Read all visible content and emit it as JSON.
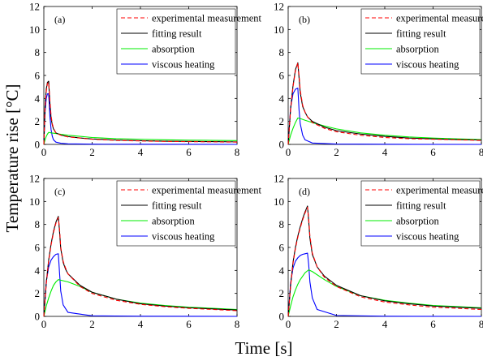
{
  "figure": {
    "xlabel": "Time [s]",
    "ylabel": "Temperature rise [°C]"
  },
  "colors": {
    "experimental": "#ff0000",
    "fitting": "#000000",
    "absorption": "#00ee00",
    "viscous": "#0000ff"
  },
  "chart_data": [
    {
      "type": "line",
      "panel": "(a)",
      "xlim": [
        0,
        8
      ],
      "ylim": [
        0,
        12
      ],
      "xticks": [
        0,
        2,
        4,
        6,
        8
      ],
      "yticks": [
        0,
        2,
        4,
        6,
        8,
        10,
        12
      ],
      "legend_position": "top-right",
      "series": [
        {
          "name": "experimental measurement",
          "style": "dashed",
          "x": [
            0,
            0.05,
            0.1,
            0.15,
            0.2,
            0.25,
            0.3,
            0.35,
            0.4,
            0.5,
            0.7,
            1,
            1.5,
            2,
            3,
            4,
            5,
            6,
            7,
            8
          ],
          "values": [
            0,
            3.2,
            4.6,
            5.3,
            5.4,
            3.8,
            2.5,
            1.8,
            1.4,
            1.0,
            0.8,
            0.65,
            0.55,
            0.45,
            0.35,
            0.3,
            0.26,
            0.24,
            0.22,
            0.2
          ]
        },
        {
          "name": "fitting result",
          "style": "solid",
          "x": [
            0,
            0.05,
            0.1,
            0.15,
            0.2,
            0.25,
            0.3,
            0.35,
            0.4,
            0.5,
            0.7,
            1,
            1.5,
            2,
            3,
            4,
            5,
            6,
            7,
            8
          ],
          "values": [
            0,
            3.3,
            4.8,
            5.4,
            5.5,
            3.6,
            2.3,
            1.7,
            1.35,
            1.0,
            0.82,
            0.68,
            0.56,
            0.47,
            0.38,
            0.32,
            0.28,
            0.26,
            0.24,
            0.22
          ]
        },
        {
          "name": "absorption",
          "style": "solid",
          "x": [
            0,
            0.05,
            0.1,
            0.15,
            0.2,
            0.3,
            0.5,
            0.7,
            1,
            1.5,
            2,
            3,
            4,
            5,
            6,
            7,
            8
          ],
          "values": [
            0,
            0.4,
            0.7,
            0.9,
            1.05,
            1.0,
            0.95,
            0.88,
            0.8,
            0.7,
            0.6,
            0.5,
            0.45,
            0.4,
            0.37,
            0.35,
            0.33
          ]
        },
        {
          "name": "viscous heating",
          "style": "solid",
          "x": [
            0,
            0.05,
            0.1,
            0.15,
            0.2,
            0.25,
            0.3,
            0.35,
            0.4,
            0.5,
            0.7,
            1,
            2,
            4,
            8
          ],
          "values": [
            0,
            2.8,
            4.0,
            4.4,
            4.4,
            2.5,
            1.3,
            0.7,
            0.4,
            0.2,
            0.1,
            0.05,
            0.02,
            0.01,
            0
          ]
        }
      ]
    },
    {
      "type": "line",
      "panel": "(b)",
      "xlim": [
        0,
        8
      ],
      "ylim": [
        0,
        12
      ],
      "xticks": [
        0,
        2,
        4,
        6,
        8
      ],
      "yticks": [
        0,
        2,
        4,
        6,
        8,
        10,
        12
      ],
      "legend_position": "top-right",
      "series": [
        {
          "name": "experimental measurement",
          "style": "dashed",
          "x": [
            0,
            0.1,
            0.2,
            0.3,
            0.4,
            0.45,
            0.5,
            0.6,
            0.7,
            0.8,
            1,
            1.5,
            2,
            3,
            4,
            5,
            6,
            7,
            8
          ],
          "values": [
            0,
            3.0,
            5.0,
            6.4,
            7.1,
            6.0,
            4.7,
            3.4,
            2.8,
            2.4,
            1.9,
            1.4,
            1.1,
            0.8,
            0.6,
            0.5,
            0.45,
            0.4,
            0.35
          ]
        },
        {
          "name": "fitting result",
          "style": "solid",
          "x": [
            0,
            0.1,
            0.2,
            0.3,
            0.4,
            0.45,
            0.5,
            0.6,
            0.7,
            0.8,
            1,
            1.5,
            2,
            3,
            4,
            5,
            6,
            7,
            8
          ],
          "values": [
            0,
            3.1,
            5.1,
            6.5,
            7.1,
            5.8,
            4.5,
            3.3,
            2.8,
            2.4,
            2.0,
            1.5,
            1.2,
            0.9,
            0.7,
            0.55,
            0.48,
            0.42,
            0.38
          ]
        },
        {
          "name": "absorption",
          "style": "solid",
          "x": [
            0,
            0.1,
            0.2,
            0.3,
            0.4,
            0.5,
            0.7,
            1,
            1.5,
            2,
            3,
            4,
            5,
            6,
            7,
            8
          ],
          "values": [
            0,
            0.8,
            1.4,
            1.9,
            2.3,
            2.25,
            2.1,
            1.9,
            1.6,
            1.35,
            1.0,
            0.8,
            0.65,
            0.55,
            0.48,
            0.42
          ]
        },
        {
          "name": "viscous heating",
          "style": "solid",
          "x": [
            0,
            0.1,
            0.2,
            0.3,
            0.4,
            0.45,
            0.5,
            0.6,
            0.7,
            1,
            2,
            4,
            8
          ],
          "values": [
            0,
            3.2,
            4.4,
            4.8,
            4.9,
            3.0,
            1.8,
            0.8,
            0.4,
            0.12,
            0.03,
            0.01,
            0
          ]
        }
      ]
    },
    {
      "type": "line",
      "panel": "(c)",
      "xlim": [
        0,
        8
      ],
      "ylim": [
        0,
        12
      ],
      "xticks": [
        0,
        2,
        4,
        6,
        8
      ],
      "yticks": [
        0,
        2,
        4,
        6,
        8,
        10,
        12
      ],
      "legend_position": "top-right",
      "series": [
        {
          "name": "experimental measurement",
          "style": "dashed",
          "x": [
            0,
            0.1,
            0.2,
            0.3,
            0.4,
            0.5,
            0.6,
            0.65,
            0.7,
            0.8,
            0.9,
            1,
            1.5,
            2,
            3,
            4,
            5,
            6,
            7,
            8
          ],
          "values": [
            0,
            2.8,
            4.8,
            6.2,
            7.3,
            8.1,
            8.6,
            7.6,
            6.0,
            4.8,
            4.2,
            3.7,
            2.6,
            2.0,
            1.4,
            1.05,
            0.85,
            0.7,
            0.6,
            0.5
          ]
        },
        {
          "name": "fitting result",
          "style": "solid",
          "x": [
            0,
            0.1,
            0.2,
            0.3,
            0.4,
            0.5,
            0.6,
            0.65,
            0.7,
            0.8,
            0.9,
            1,
            1.5,
            2,
            3,
            4,
            5,
            6,
            7,
            8
          ],
          "values": [
            0,
            2.9,
            4.9,
            6.3,
            7.4,
            8.2,
            8.7,
            7.4,
            5.9,
            4.7,
            4.1,
            3.7,
            2.7,
            2.1,
            1.5,
            1.1,
            0.9,
            0.75,
            0.65,
            0.55
          ]
        },
        {
          "name": "absorption",
          "style": "solid",
          "x": [
            0,
            0.1,
            0.2,
            0.3,
            0.4,
            0.5,
            0.6,
            0.7,
            1,
            1.5,
            2,
            3,
            4,
            5,
            6,
            7,
            8
          ],
          "values": [
            0,
            0.9,
            1.6,
            2.2,
            2.7,
            3.0,
            3.2,
            3.15,
            3.0,
            2.6,
            2.1,
            1.5,
            1.15,
            0.95,
            0.8,
            0.7,
            0.6
          ]
        },
        {
          "name": "viscous heating",
          "style": "solid",
          "x": [
            0,
            0.1,
            0.2,
            0.3,
            0.4,
            0.5,
            0.6,
            0.65,
            0.7,
            0.8,
            1,
            2,
            4,
            8
          ],
          "values": [
            0,
            3.0,
            4.3,
            4.9,
            5.2,
            5.4,
            5.45,
            3.8,
            2.2,
            1.0,
            0.35,
            0.05,
            0.01,
            0
          ]
        }
      ]
    },
    {
      "type": "line",
      "panel": "(d)",
      "xlim": [
        0,
        8
      ],
      "ylim": [
        0,
        12
      ],
      "xticks": [
        0,
        2,
        4,
        6,
        8
      ],
      "yticks": [
        0,
        2,
        4,
        6,
        8,
        10,
        12
      ],
      "legend_position": "top-right",
      "series": [
        {
          "name": "experimental measurement",
          "style": "dashed",
          "x": [
            0,
            0.1,
            0.2,
            0.3,
            0.4,
            0.5,
            0.6,
            0.7,
            0.8,
            0.85,
            0.9,
            1,
            1.2,
            1.5,
            2,
            3,
            4,
            5,
            6,
            7,
            8
          ],
          "values": [
            0,
            2.6,
            4.6,
            5.9,
            6.9,
            7.7,
            8.4,
            9.0,
            9.5,
            8.5,
            7.0,
            5.5,
            4.3,
            3.4,
            2.6,
            1.7,
            1.25,
            1.0,
            0.8,
            0.7,
            0.6
          ]
        },
        {
          "name": "fitting result",
          "style": "solid",
          "x": [
            0,
            0.1,
            0.2,
            0.3,
            0.4,
            0.5,
            0.6,
            0.7,
            0.8,
            0.85,
            0.9,
            1,
            1.2,
            1.5,
            2,
            3,
            4,
            5,
            6,
            7,
            8
          ],
          "values": [
            0,
            2.7,
            4.7,
            6.0,
            7.0,
            7.8,
            8.5,
            9.1,
            9.6,
            8.3,
            6.8,
            5.4,
            4.3,
            3.5,
            2.7,
            1.8,
            1.35,
            1.1,
            0.9,
            0.8,
            0.7
          ]
        },
        {
          "name": "absorption",
          "style": "solid",
          "x": [
            0,
            0.1,
            0.2,
            0.3,
            0.4,
            0.5,
            0.6,
            0.7,
            0.85,
            1,
            1.5,
            2,
            3,
            4,
            5,
            6,
            7,
            8
          ],
          "values": [
            0,
            0.9,
            1.7,
            2.3,
            2.8,
            3.2,
            3.5,
            3.8,
            4.05,
            3.9,
            3.2,
            2.6,
            1.8,
            1.4,
            1.15,
            0.95,
            0.85,
            0.75
          ]
        },
        {
          "name": "viscous heating",
          "style": "solid",
          "x": [
            0,
            0.1,
            0.2,
            0.3,
            0.4,
            0.5,
            0.6,
            0.7,
            0.8,
            0.85,
            0.9,
            1,
            1.2,
            2,
            4,
            8
          ],
          "values": [
            0,
            2.9,
            4.2,
            4.8,
            5.1,
            5.3,
            5.4,
            5.45,
            5.5,
            4.5,
            3.0,
            1.6,
            0.6,
            0.08,
            0.01,
            0
          ]
        }
      ]
    }
  ]
}
